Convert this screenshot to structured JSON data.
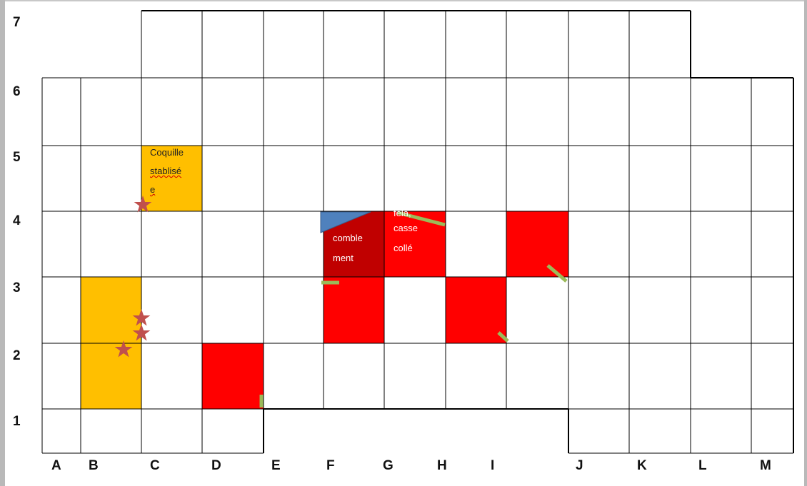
{
  "grid": {
    "columns": [
      "A",
      "B",
      "C",
      "D",
      "E",
      "F",
      "G",
      "H",
      "I",
      "J",
      "K",
      "L",
      "M"
    ],
    "rows": [
      "7",
      "6",
      "5",
      "4",
      "3",
      "2",
      "1"
    ]
  },
  "cells": {
    "coquille": {
      "line1": "Coquille",
      "line2": "stablisé",
      "line3": "e"
    },
    "comblement": {
      "line1": "comble",
      "line2": "ment"
    },
    "fela": {
      "line1": "fela,",
      "line2": "casse",
      "line3": "collé"
    }
  },
  "colors": {
    "orange": "#ffbf00",
    "red": "#ff0000",
    "dark_red": "#c00000",
    "blue": "#4f81bd",
    "green": "#9bbb59",
    "star": "#c0504d",
    "grid_line": "#000000"
  },
  "markers": {
    "stars": 4,
    "green_dashes": 6
  }
}
